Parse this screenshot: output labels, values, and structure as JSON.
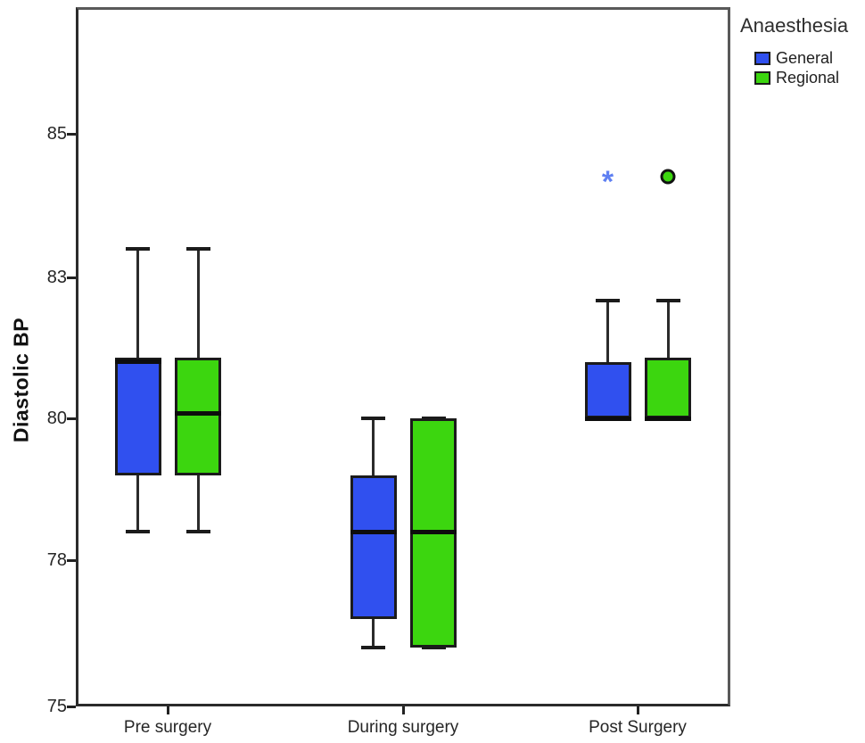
{
  "chart_data": {
    "type": "boxplot",
    "title": "",
    "xlabel": "",
    "ylabel": "Diastolic BP",
    "categories": [
      "Pre surgery",
      "During surgery",
      "Post Surgery"
    ],
    "y_ticks": [
      75,
      78,
      80,
      83,
      85
    ],
    "y_tick_labels": [
      "75",
      "78",
      "80",
      "83",
      "85"
    ],
    "ylim": [
      75,
      86
    ],
    "grid": "off",
    "axis_note": "y ticks are drawn evenly spaced although value intervals alternate 3,2,3,2",
    "legend": {
      "title": "Anaesthesia",
      "position": "top-right-outside",
      "items": [
        {
          "label": "General",
          "color": "#3050ef"
        },
        {
          "label": "Regional",
          "color": "#3cd60f"
        }
      ]
    },
    "series": [
      {
        "name": "General",
        "color": "#3050ef",
        "outlier_marker": "asterisk",
        "outlier_marker_color": "#5f80f2",
        "boxes": [
          {
            "category": "Pre surgery",
            "min": 78.4,
            "q1": 79.2,
            "median": 81.2,
            "q3": 81.3,
            "max": 83.4,
            "outliers": []
          },
          {
            "category": "During surgery",
            "min": 76.2,
            "q1": 76.8,
            "median": 78.4,
            "q3": 79.2,
            "max": 80.0,
            "outliers": []
          },
          {
            "category": "Post Surgery",
            "min": 80.0,
            "q1": 80.0,
            "median": 80.0,
            "q3": 81.2,
            "max": 82.5,
            "outliers": [
              84.4
            ]
          }
        ]
      },
      {
        "name": "Regional",
        "color": "#3cd60f",
        "outlier_marker": "circle",
        "outlier_marker_color": "#3cd60f",
        "boxes": [
          {
            "category": "Pre surgery",
            "min": 78.4,
            "q1": 79.2,
            "median": 80.1,
            "q3": 81.3,
            "max": 83.4,
            "outliers": []
          },
          {
            "category": "During surgery",
            "min": 76.2,
            "q1": 76.2,
            "median": 78.4,
            "q3": 80.0,
            "max": 80.0,
            "outliers": []
          },
          {
            "category": "Post Surgery",
            "min": 80.0,
            "q1": 80.0,
            "median": 80.0,
            "q3": 81.3,
            "max": 82.5,
            "outliers": [
              84.4
            ]
          }
        ]
      }
    ]
  }
}
